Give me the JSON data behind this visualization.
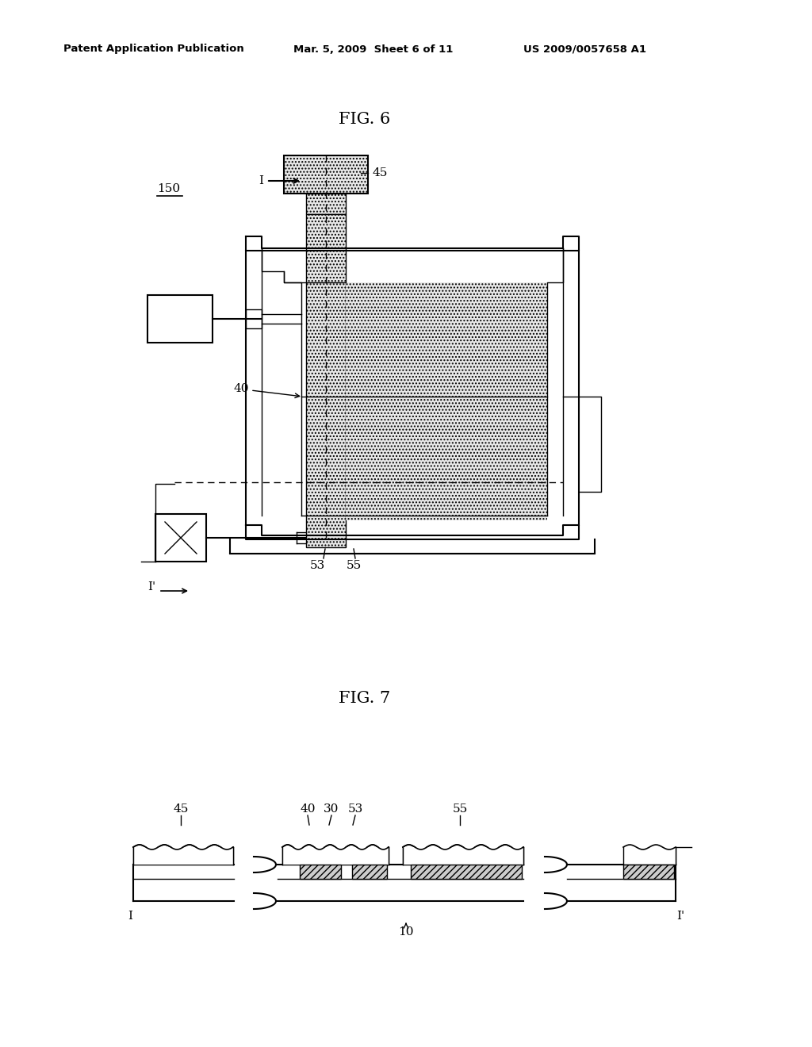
{
  "bg_color": "#ffffff",
  "header_left": "Patent Application Publication",
  "header_mid": "Mar. 5, 2009  Sheet 6 of 11",
  "header_right": "US 2009/0057658 A1",
  "fig6_title": "FIG. 6",
  "fig7_title": "FIG. 7",
  "lc": "#000000",
  "lw": 1.5,
  "lw_thin": 1.0
}
